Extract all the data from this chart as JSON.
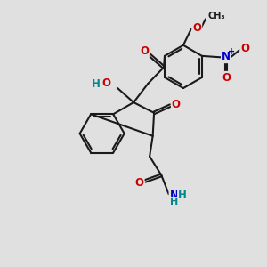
{
  "background_color": "#e0e0e0",
  "bond_color": "#1a1a1a",
  "bond_width": 1.5,
  "atom_colors": {
    "O": "#cc0000",
    "N": "#0000cc",
    "C": "#1a1a1a",
    "H": "#008888"
  },
  "font_size": 8.5,
  "font_size_small": 7.0,
  "figsize": [
    3.0,
    3.0
  ],
  "dpi": 100
}
